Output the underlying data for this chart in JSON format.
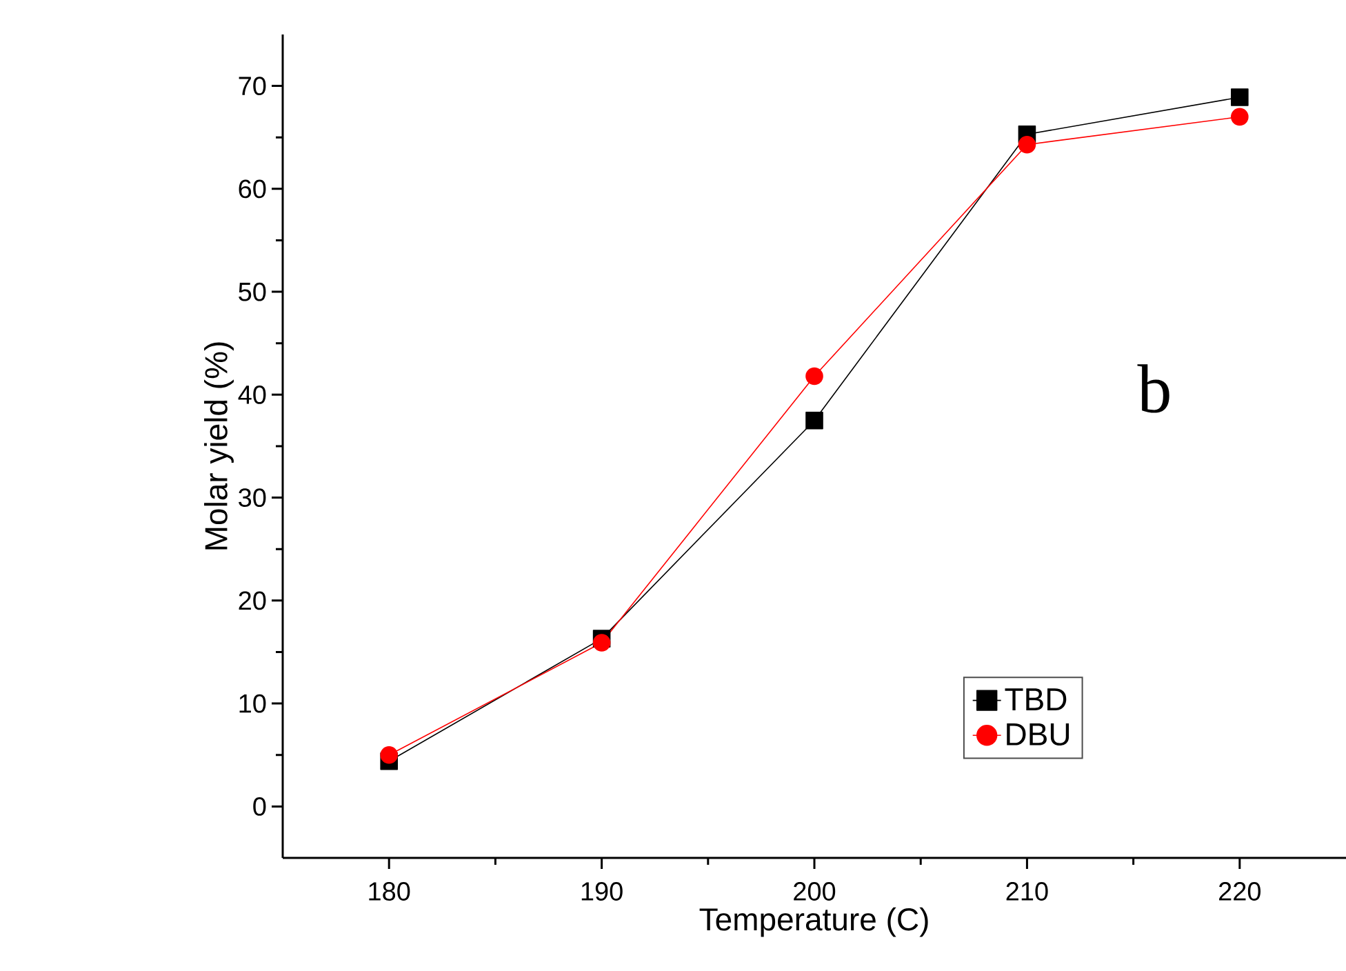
{
  "chart_data": {
    "type": "line",
    "xlabel": "Temperature (C)",
    "ylabel": "Molar yield (%)",
    "x": [
      180,
      190,
      200,
      210,
      220
    ],
    "series": [
      {
        "name": "TBD",
        "color": "#000000",
        "marker": "square",
        "values": [
          4.4,
          16.3,
          37.5,
          65.3,
          68.9
        ]
      },
      {
        "name": "DBU",
        "color": "#ff0000",
        "marker": "circle",
        "values": [
          5.0,
          15.9,
          41.8,
          64.3,
          67.0
        ]
      }
    ],
    "xlim": [
      175,
      225
    ],
    "xticks": [
      180,
      190,
      200,
      210,
      220
    ],
    "ylim": [
      -5,
      75
    ],
    "yticks": [
      0,
      10,
      20,
      30,
      40,
      50,
      60,
      70
    ],
    "legend": "bottom right",
    "grid": false,
    "line_style": "solid",
    "annotations": [
      "b"
    ]
  }
}
